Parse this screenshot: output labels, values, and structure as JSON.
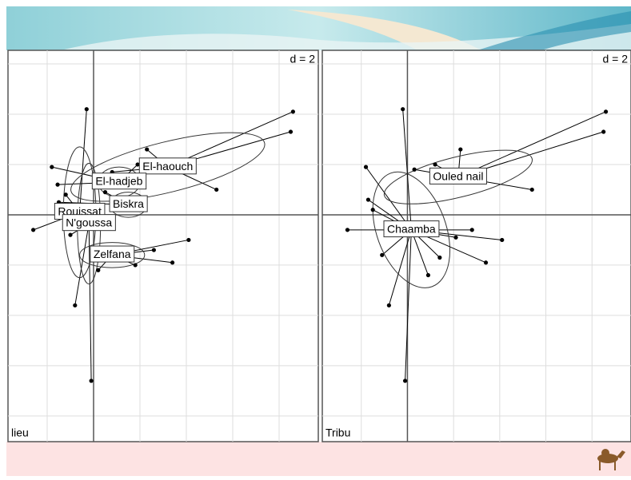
{
  "chart_data": [
    {
      "type": "scatter",
      "d_label": "d = 2",
      "panel_label": "lieu",
      "xlim": [
        -3.69,
        9.69
      ],
      "ylim": [
        -9.02,
        6.54
      ],
      "grid_step": 2,
      "classes": [
        {
          "name": "El-haouch",
          "x": 3.2,
          "y": 1.9,
          "ellipse": [
            4.3,
            1.0,
            -14
          ]
        },
        {
          "name": "El-hadjeb",
          "x": 1.1,
          "y": 1.3,
          "ellipse": [
            0.9,
            0.6,
            0
          ]
        },
        {
          "name": "Biskra",
          "x": 1.5,
          "y": 0.4,
          "ellipse": [
            0.8,
            0.5,
            0
          ]
        },
        {
          "name": "Rouissat",
          "x": -0.6,
          "y": 0.1,
          "ellipse": [
            0.7,
            2.6,
            0
          ]
        },
        {
          "name": "N'goussa",
          "x": -0.2,
          "y": -0.35,
          "ellipse": [
            0.5,
            2.4,
            0
          ]
        },
        {
          "name": "Zelfana",
          "x": 0.8,
          "y": -1.6,
          "ellipse": [
            1.4,
            0.5,
            0
          ]
        }
      ],
      "points": {
        "x": [
          8.6,
          8.5,
          5.3,
          2.3,
          0.8,
          1.9,
          -1.8,
          -1.55,
          0.5,
          -1.5,
          2.2,
          -0.3,
          -2.6,
          -1.2,
          -0.8,
          -0.1,
          -1.0,
          4.1,
          3.4,
          2.6,
          1.8,
          0.2
        ],
        "y": [
          4.1,
          3.3,
          1.0,
          2.6,
          1.7,
          2.0,
          1.9,
          1.2,
          0.9,
          0.5,
          0.2,
          4.2,
          -0.6,
          0.8,
          -3.6,
          -6.6,
          -0.8,
          -1.0,
          -1.9,
          -1.4,
          -2.0,
          -2.2
        ],
        "class": [
          0,
          0,
          0,
          0,
          0,
          1,
          1,
          1,
          2,
          2,
          2,
          3,
          3,
          3,
          4,
          4,
          4,
          5,
          5,
          5,
          5,
          5
        ]
      }
    },
    {
      "type": "scatter",
      "d_label": "d = 2",
      "panel_label": "Tribu",
      "xlim": [
        -3.69,
        9.69
      ],
      "ylim": [
        -9.02,
        6.54
      ],
      "grid_step": 2,
      "classes": [
        {
          "name": "Ouled nail",
          "x": 2.2,
          "y": 1.5,
          "ellipse": [
            3.3,
            0.8,
            -14
          ]
        },
        {
          "name": "Chaamba",
          "x": 0.17,
          "y": -0.6,
          "ellipse": [
            1.5,
            2.4,
            -20
          ]
        }
      ],
      "points": {
        "x": [
          8.6,
          8.5,
          5.4,
          2.3,
          0.3,
          1.2,
          -0.2,
          -2.6,
          -0.8,
          -0.1,
          4.1,
          3.4,
          -1.8,
          -1.7,
          -1.1,
          2.1,
          1.4,
          -1.5,
          0.9,
          2.8
        ],
        "y": [
          4.1,
          3.3,
          1.0,
          2.6,
          1.8,
          2.0,
          4.2,
          -0.6,
          -3.6,
          -6.6,
          -1.0,
          -1.9,
          1.9,
          0.6,
          -1.6,
          -0.9,
          -1.7,
          0.2,
          -2.4,
          -0.6
        ],
        "class": [
          0,
          0,
          0,
          0,
          0,
          0,
          1,
          1,
          1,
          1,
          1,
          1,
          1,
          1,
          1,
          1,
          1,
          1,
          1,
          1
        ]
      }
    }
  ]
}
